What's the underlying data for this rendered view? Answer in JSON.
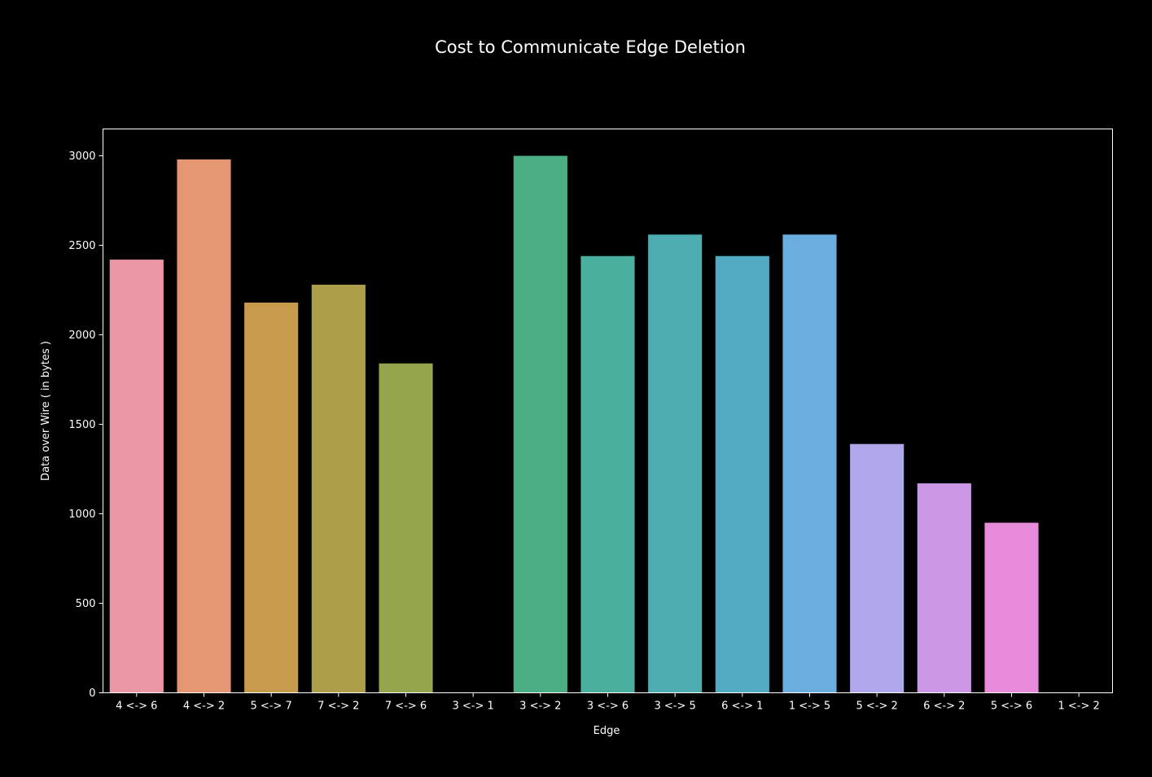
{
  "chart_data": {
    "type": "bar",
    "title": "Cost to Communicate Edge Deletion",
    "xlabel": "Edge",
    "ylabel": "Data over Wire ( in bytes )",
    "categories": [
      "4 <-> 6",
      "4 <-> 2",
      "5 <-> 7",
      "7 <-> 2",
      "7 <-> 6",
      "3 <-> 1",
      "3 <-> 2",
      "3 <-> 6",
      "3 <-> 5",
      "6 <-> 1",
      "1 <-> 5",
      "5 <-> 2",
      "6 <-> 2",
      "5 <-> 6",
      "1 <-> 2"
    ],
    "values": [
      2420,
      2980,
      2180,
      2280,
      1840,
      0,
      3000,
      2440,
      2560,
      2440,
      2560,
      1390,
      1170,
      950,
      0
    ],
    "colors": [
      "#ea96a3",
      "#e59673",
      "#c79a4c",
      "#ad9f4a",
      "#93a64b",
      "#6cae4e",
      "#4caf84",
      "#4baf9d",
      "#4dadb1",
      "#50abc3",
      "#6badde",
      "#aea7ec",
      "#cc98e6",
      "#e88bdb",
      "#e48fc6"
    ],
    "yticks": [
      0,
      500,
      1000,
      1500,
      2000,
      2500,
      3000
    ],
    "ylim": [
      0,
      3150
    ],
    "grid": false,
    "legend": "none"
  }
}
